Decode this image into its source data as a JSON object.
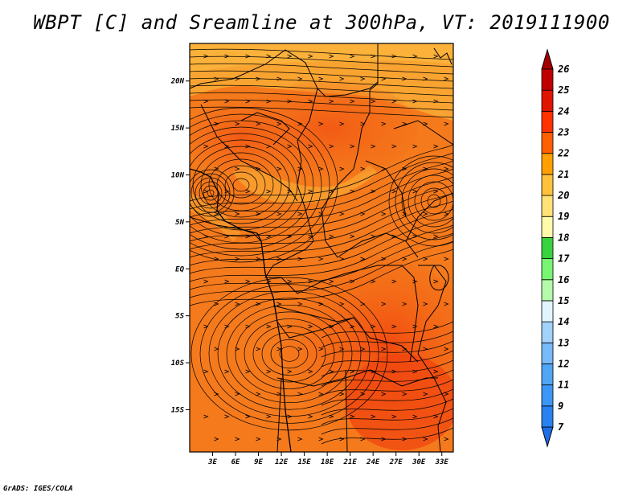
{
  "title": "WBPT [C] and Sreamline at 300hPa, VT: 2019111900",
  "footer": "GrADS: IGES/COLA",
  "map": {
    "lon_range": [
      0,
      34.5
    ],
    "lat_range": [
      -19.5,
      24
    ],
    "lat_ticks": [
      {
        "value": 20,
        "label": "20N"
      },
      {
        "value": 15,
        "label": "15N"
      },
      {
        "value": 10,
        "label": "10N"
      },
      {
        "value": 5,
        "label": "5N"
      },
      {
        "value": 0,
        "label": "EQ"
      },
      {
        "value": -5,
        "label": "5S"
      },
      {
        "value": -10,
        "label": "10S"
      },
      {
        "value": -15,
        "label": "15S"
      }
    ],
    "lon_ticks": [
      {
        "value": 3,
        "label": "3E"
      },
      {
        "value": 6,
        "label": "6E"
      },
      {
        "value": 9,
        "label": "9E"
      },
      {
        "value": 12,
        "label": "12E"
      },
      {
        "value": 15,
        "label": "15E"
      },
      {
        "value": 18,
        "label": "18E"
      },
      {
        "value": 21,
        "label": "21E"
      },
      {
        "value": 24,
        "label": "24E"
      },
      {
        "value": 27,
        "label": "27E"
      },
      {
        "value": 30,
        "label": "30E"
      },
      {
        "value": 33,
        "label": "33E"
      }
    ]
  },
  "colorbar": {
    "labels": [
      "7",
      "9",
      "11",
      "12",
      "13",
      "14",
      "15",
      "16",
      "17",
      "18",
      "19",
      "20",
      "21",
      "22",
      "23",
      "24",
      "25",
      "26"
    ],
    "colors": [
      "#1e6ee6",
      "#2882f0",
      "#3c96f5",
      "#50a5f5",
      "#78b9fa",
      "#a0d2fa",
      "#e1f5ff",
      "#b4faaa",
      "#78f573",
      "#37d23c",
      "#fffaaa",
      "#ffe178",
      "#ffc03c",
      "#ffa000",
      "#ff6000",
      "#ff3200",
      "#e11400",
      "#c00000"
    ],
    "under_color": "#1e6ee6",
    "over_color": "#a50000"
  }
}
